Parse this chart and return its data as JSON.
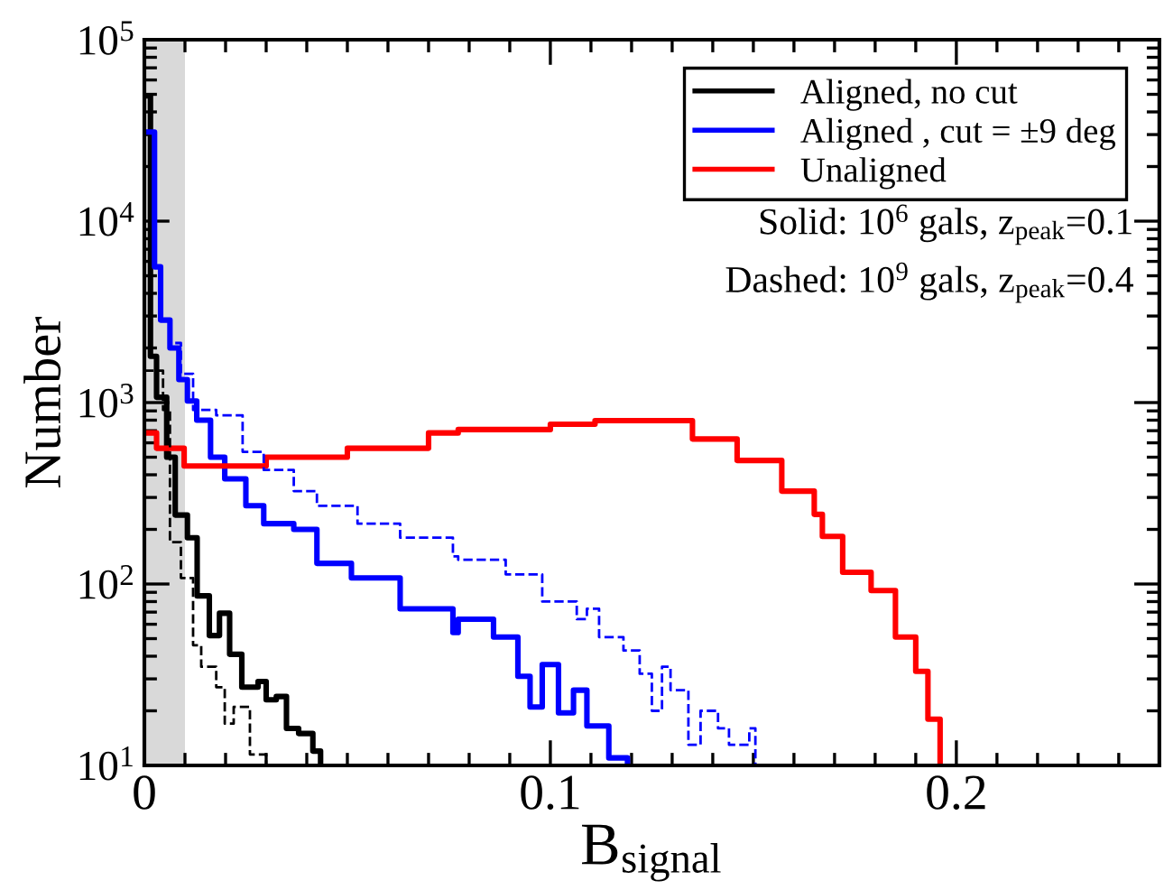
{
  "chart_data": {
    "type": "step",
    "xlabel": "B$_{signal}$",
    "ylabel": "Number",
    "log": "y",
    "xlim": [
      0,
      0.25
    ],
    "ylim": [
      10,
      100000
    ],
    "xticks": [
      0,
      {
        "value": 0.01,
        "label": null
      },
      {
        "value": 0.02,
        "label": null
      },
      {
        "value": 0.03,
        "label": null
      },
      {
        "value": 0.04,
        "label": null
      },
      {
        "value": 0.05,
        "label": null
      },
      {
        "value": 0.06,
        "label": null
      },
      {
        "value": 0.07,
        "label": null
      },
      {
        "value": 0.08,
        "label": null
      },
      {
        "value": 0.09,
        "label": null
      },
      0.1,
      {
        "value": 0.11,
        "label": null
      },
      {
        "value": 0.12,
        "label": null
      },
      {
        "value": 0.13,
        "label": null
      },
      {
        "value": 0.14,
        "label": null
      },
      {
        "value": 0.15,
        "label": null
      },
      {
        "value": 0.16,
        "label": null
      },
      {
        "value": 0.17,
        "label": null
      },
      {
        "value": 0.18,
        "label": null
      },
      {
        "value": 0.19,
        "label": null
      },
      0.2,
      {
        "value": 0.21,
        "label": null
      },
      {
        "value": 0.22,
        "label": null
      },
      {
        "value": 0.23,
        "label": null
      },
      {
        "value": 0.24,
        "label": null
      }
    ],
    "yticks": [
      {
        "value": 10,
        "label": "10$^{1}$"
      },
      {
        "value": 20,
        "label": null
      },
      {
        "value": 30,
        "label": null
      },
      {
        "value": 40,
        "label": null
      },
      {
        "value": 50,
        "label": null
      },
      {
        "value": 60,
        "label": null
      },
      {
        "value": 70,
        "label": null
      },
      {
        "value": 80,
        "label": null
      },
      {
        "value": 90,
        "label": null
      },
      {
        "value": 100,
        "label": "10$^{2}$"
      },
      {
        "value": 200,
        "label": null
      },
      {
        "value": 300,
        "label": null
      },
      {
        "value": 400,
        "label": null
      },
      {
        "value": 500,
        "label": null
      },
      {
        "value": 600,
        "label": null
      },
      {
        "value": 700,
        "label": null
      },
      {
        "value": 800,
        "label": null
      },
      {
        "value": 900,
        "label": null
      },
      {
        "value": 1000,
        "label": "10$^{3}$"
      },
      {
        "value": 2000,
        "label": null
      },
      {
        "value": 3000,
        "label": null
      },
      {
        "value": 4000,
        "label": null
      },
      {
        "value": 5000,
        "label": null
      },
      {
        "value": 6000,
        "label": null
      },
      {
        "value": 7000,
        "label": null
      },
      {
        "value": 8000,
        "label": null
      },
      {
        "value": 9000,
        "label": null
      },
      {
        "value": 10000,
        "label": "10$^{4}$"
      },
      {
        "value": 20000,
        "label": null
      },
      {
        "value": 30000,
        "label": null
      },
      {
        "value": 40000,
        "label": null
      },
      {
        "value": 50000,
        "label": null
      },
      {
        "value": 60000,
        "label": null
      },
      {
        "value": 70000,
        "label": null
      },
      {
        "value": 80000,
        "label": null
      },
      {
        "value": 90000,
        "label": null
      },
      {
        "value": 100000,
        "label": "10$^{5}$"
      }
    ],
    "grid": false,
    "legend": "top right",
    "marker": "none",
    "bands": [
      {
        "axis": "x",
        "from": 0,
        "to": 0.01,
        "color": "#d9d9d9"
      }
    ],
    "annotations": [
      "Solid: 10$^{6}$ gals, z$_{peak}$=0.1",
      "Dashed: 10$^{9}$ gals, z$_{peak}$=0.4"
    ],
    "series": [
      {
        "name": "Aligned, no cut",
        "color": "#000000",
        "line_style": "solid",
        "x": [
          0,
          0.0015,
          0.003,
          0.0055,
          0.0076,
          0.0106,
          0.013,
          0.016,
          0.0185,
          0.021,
          0.024,
          0.028,
          0.03,
          0.0325,
          0.035,
          0.038,
          0.0415,
          0.0434
        ],
        "values": [
          49000,
          1800,
          1070,
          500,
          240,
          180,
          86,
          52,
          69,
          41,
          27,
          29,
          23,
          24,
          16,
          15,
          12,
          10
        ]
      },
      {
        "name": "Aligned , cut = ±9 deg",
        "color": "#0000ff",
        "line_style": "solid",
        "x": [
          0,
          0.0025,
          0.004,
          0.0063,
          0.0085,
          0.0106,
          0.0129,
          0.0163,
          0.0198,
          0.025,
          0.0294,
          0.0368,
          0.0425,
          0.051,
          0.063,
          0.076,
          0.0773,
          0.086,
          0.092,
          0.095,
          0.098,
          0.102,
          0.1057,
          0.109,
          0.1144,
          0.119
        ],
        "values": [
          31000,
          5600,
          2850,
          2000,
          1340,
          1020,
          800,
          500,
          380,
          270,
          215,
          200,
          130,
          108,
          73,
          54,
          64,
          51,
          31,
          21,
          36,
          19.5,
          26,
          16.5,
          11,
          10
        ]
      },
      {
        "name": "Unaligned",
        "color": "#ff0000",
        "line_style": "solid",
        "x": [
          0,
          0.003,
          0.0098,
          0.03,
          0.05,
          0.07,
          0.0773,
          0.1,
          0.111,
          0.135,
          0.146,
          0.157,
          0.165,
          0.167,
          0.172,
          0.179,
          0.185,
          0.19,
          0.193,
          0.196
        ],
        "values": [
          680,
          560,
          447,
          500,
          560,
          680,
          710,
          760,
          795,
          630,
          480,
          325,
          242,
          183,
          116,
          92,
          51,
          33,
          18,
          10
        ]
      },
      {
        "color": "#000000",
        "line_style": "dashed",
        "x": [
          0,
          0.0046,
          0.0063,
          0.009,
          0.012,
          0.014,
          0.0177,
          0.0198,
          0.022,
          0.026,
          0.03
        ],
        "values": [
          1500,
          910,
          170,
          108,
          46,
          35,
          27,
          17,
          21,
          11.5,
          10
        ]
      },
      {
        "color": "#0000ff",
        "line_style": "dashed",
        "x": [
          0.0076,
          0.009,
          0.012,
          0.0177,
          0.0242,
          0.0294,
          0.0368,
          0.0425,
          0.0525,
          0.063,
          0.076,
          0.0773,
          0.089,
          0.098,
          0.1065,
          0.109,
          0.112,
          0.118,
          0.122,
          0.125,
          0.1275,
          0.1296,
          0.134,
          0.137,
          0.1413,
          0.144,
          0.149,
          0.1505
        ],
        "values": [
          2130,
          1440,
          910,
          850,
          535,
          425,
          325,
          270,
          215,
          180,
          142,
          136,
          113,
          80,
          64,
          73,
          51,
          43,
          32,
          20,
          35,
          26,
          13,
          20,
          16,
          13,
          16,
          10
        ]
      }
    ]
  }
}
